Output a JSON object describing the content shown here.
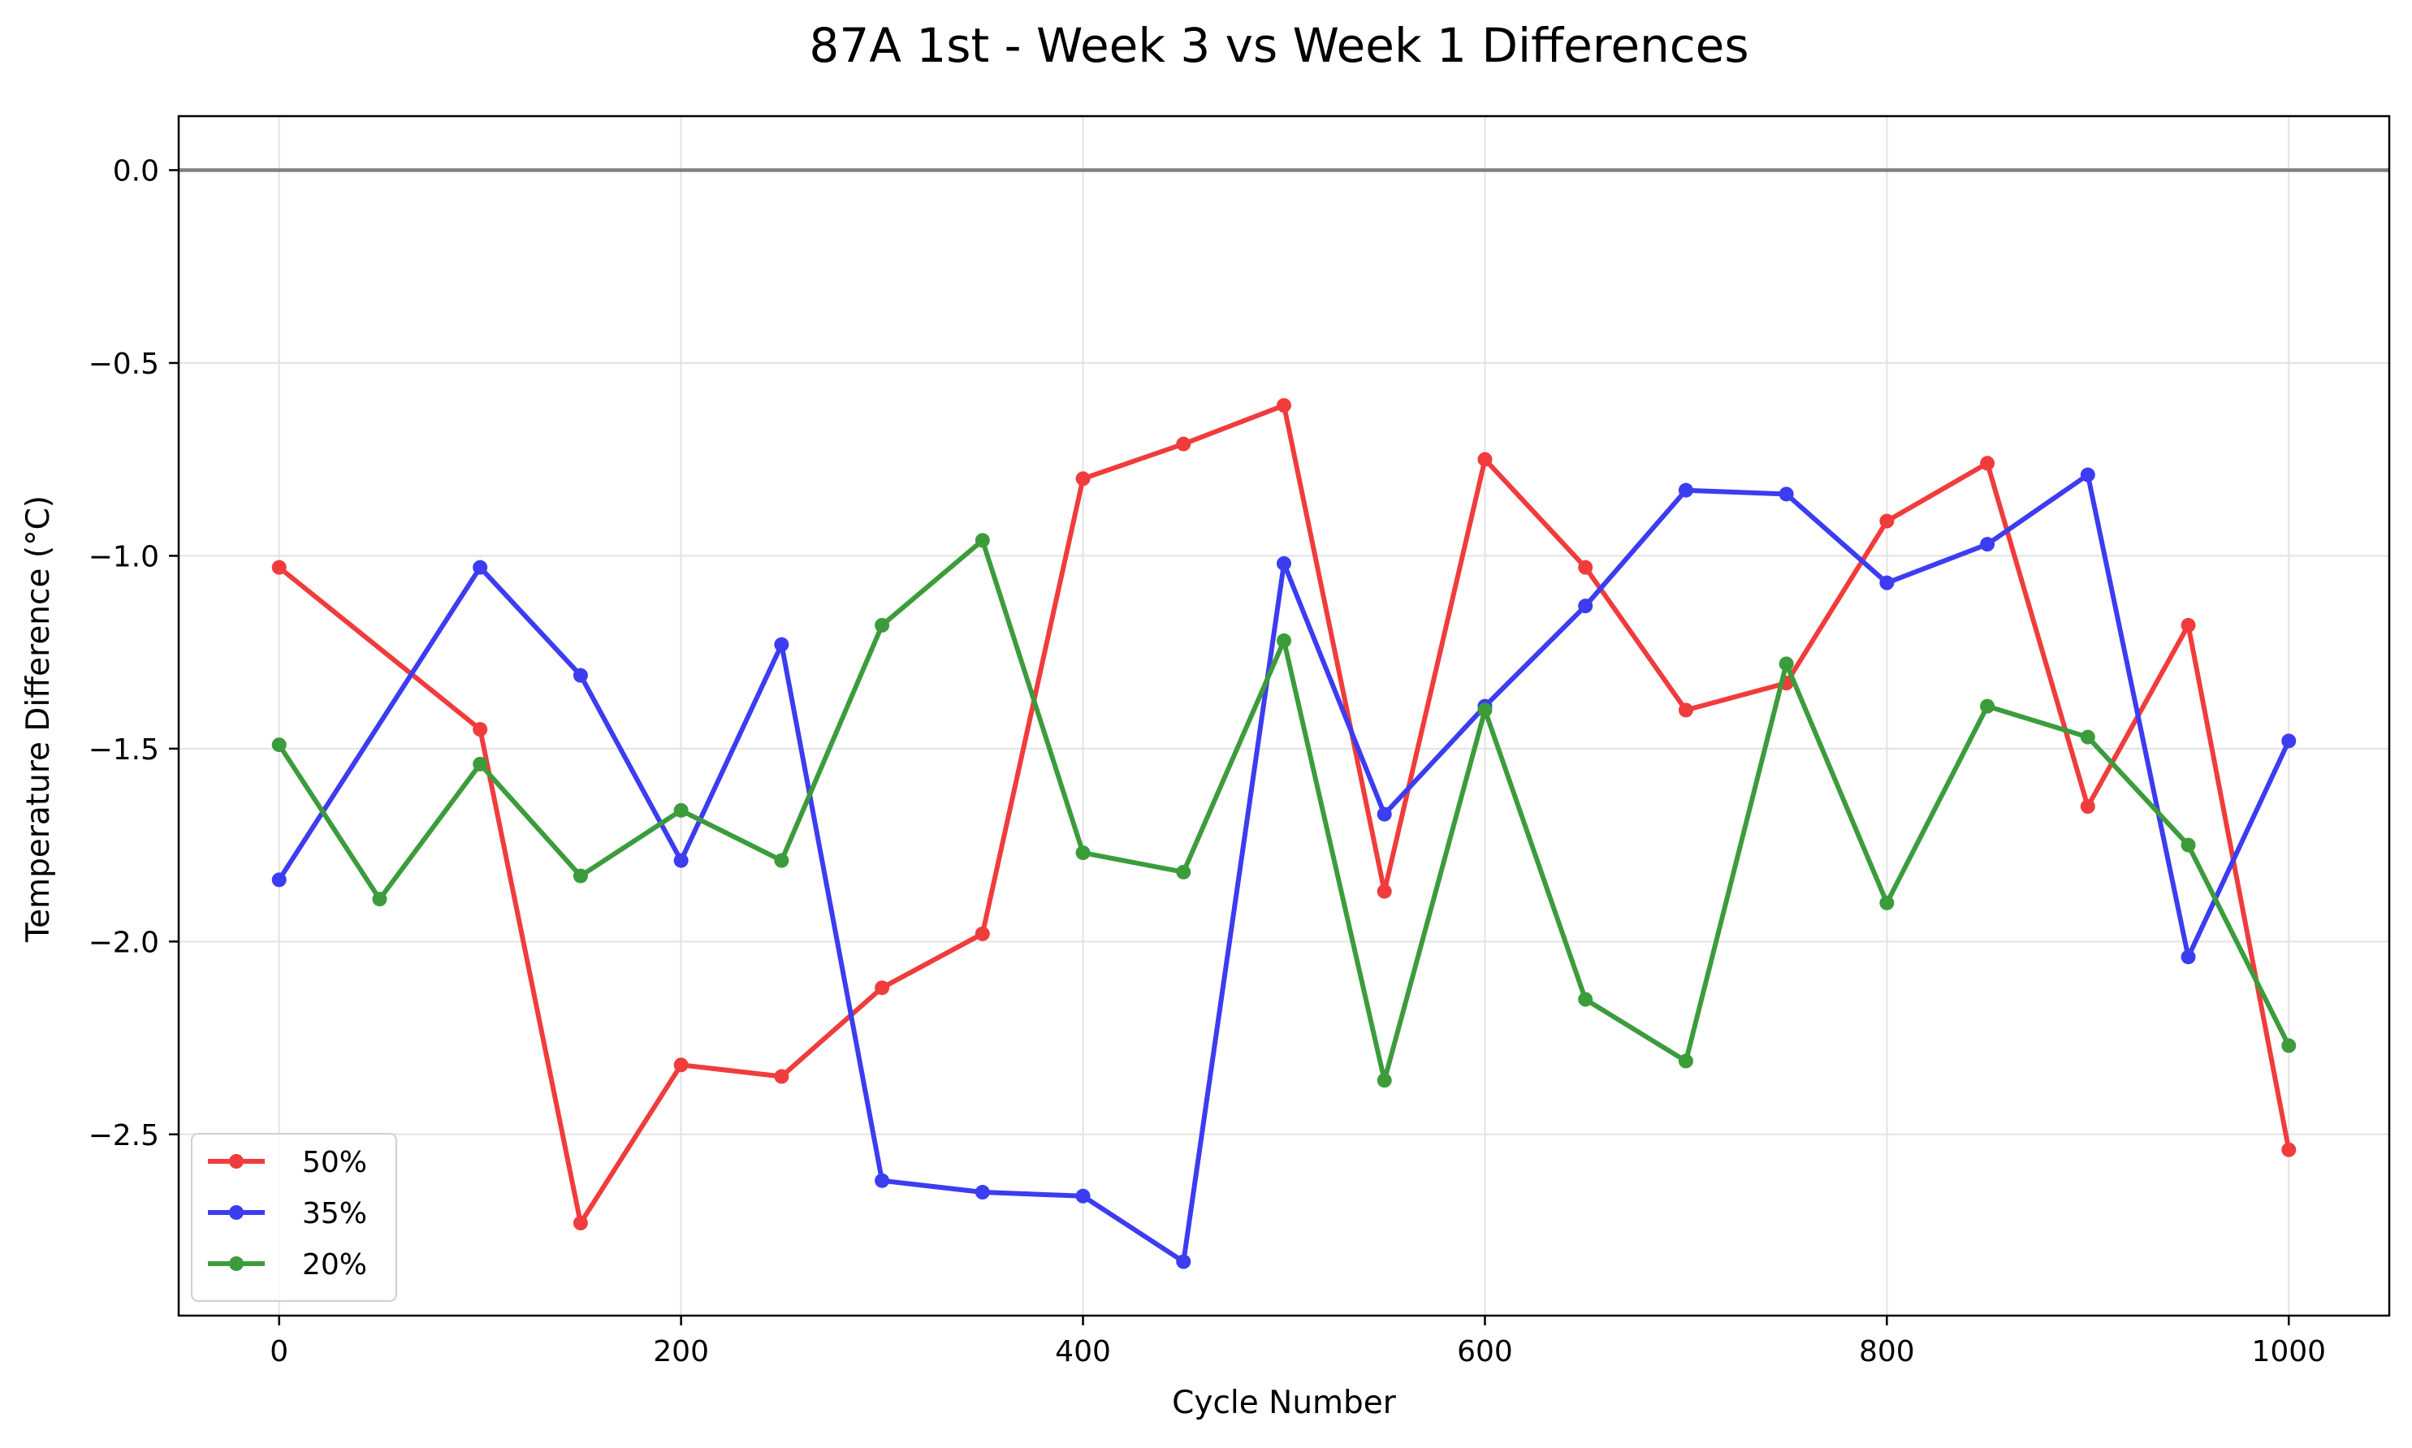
{
  "chart_data": {
    "type": "line",
    "title": "87A 1st - Week 3 vs Week 1 Differences",
    "xlabel": "Cycle Number",
    "ylabel": "Temperature Difference (°C)",
    "xlim": [
      -50,
      1050
    ],
    "ylim": [
      -2.97,
      0.14
    ],
    "x_ticks": [
      0,
      200,
      400,
      600,
      800,
      1000
    ],
    "x_tick_labels": [
      "0",
      "200",
      "400",
      "600",
      "800",
      "1000"
    ],
    "y_ticks": [
      0.0,
      -0.5,
      -1.0,
      -1.5,
      -2.0,
      -2.5
    ],
    "y_tick_labels": [
      "0.0",
      "−0.5",
      "−1.0",
      "−1.5",
      "−2.0",
      "−2.5"
    ],
    "grid": true,
    "reference_line": {
      "y": 0.0,
      "color": "#808080"
    },
    "legend_position": "lower-left",
    "series": [
      {
        "name": "50%",
        "color": "#f03c3c",
        "x": [
          0,
          100,
          150,
          200,
          250,
          300,
          350,
          400,
          450,
          500,
          550,
          600,
          650,
          700,
          750,
          800,
          850,
          900,
          950,
          1000
        ],
        "y": [
          -1.03,
          -1.45,
          -2.73,
          -2.32,
          -2.35,
          -2.12,
          -1.98,
          -0.8,
          -0.71,
          -0.61,
          -1.87,
          -0.75,
          -1.03,
          -1.4,
          -1.33,
          -0.91,
          -0.76,
          -1.65,
          -1.18,
          -2.54
        ]
      },
      {
        "name": "35%",
        "color": "#3c3cf0",
        "x": [
          0,
          100,
          150,
          200,
          250,
          300,
          350,
          400,
          450,
          500,
          550,
          600,
          650,
          700,
          750,
          800,
          850,
          900,
          950,
          1000
        ],
        "y": [
          -1.84,
          -1.03,
          -1.31,
          -1.79,
          -1.23,
          -2.62,
          -2.65,
          -2.66,
          -2.83,
          -1.02,
          -1.67,
          -1.39,
          -1.13,
          -0.83,
          -0.84,
          -1.07,
          -0.97,
          -0.79,
          -2.04,
          -1.48
        ]
      },
      {
        "name": "20%",
        "color": "#3c9c3c",
        "x": [
          0,
          50,
          100,
          150,
          200,
          250,
          300,
          350,
          400,
          450,
          500,
          550,
          600,
          650,
          700,
          750,
          800,
          850,
          900,
          950,
          1000
        ],
        "y": [
          -1.49,
          -1.89,
          -1.54,
          -1.83,
          -1.66,
          -1.79,
          -1.18,
          -0.96,
          -1.77,
          -1.82,
          -1.22,
          -2.36,
          -1.4,
          -2.15,
          -2.31,
          -1.28,
          -1.9,
          -1.39,
          -1.47,
          -1.75,
          -2.27
        ]
      }
    ]
  }
}
